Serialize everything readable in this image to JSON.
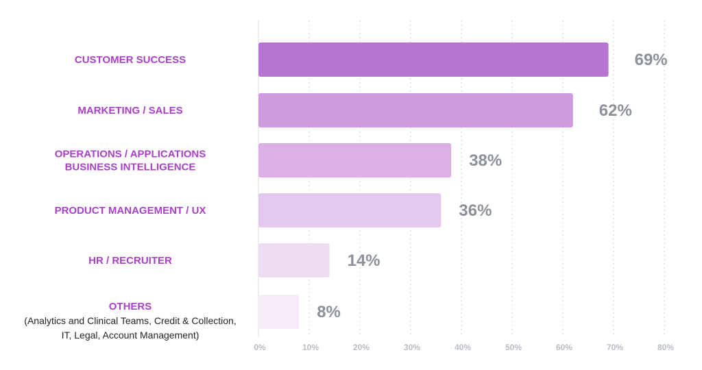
{
  "chart_data": {
    "type": "bar",
    "orientation": "horizontal",
    "categories": [
      [
        "CUSTOMER SUCCESS"
      ],
      [
        "MARKETING / SALES"
      ],
      [
        "OPERATIONS / APPLICATIONS",
        "BUSINESS INTELLIGENCE"
      ],
      [
        "PRODUCT MANAGEMENT / UX"
      ],
      [
        "HR / RECRUITER"
      ],
      [
        "OTHERS"
      ]
    ],
    "category_notes": [
      [],
      [],
      [],
      [],
      [],
      [
        "(Analytics and Clinical Teams, Credit & Collection,",
        "IT, Legal, Account Management)"
      ]
    ],
    "values": [
      69,
      62,
      38,
      36,
      14,
      8
    ],
    "value_labels": [
      "69%",
      "62%",
      "38%",
      "36%",
      "14%",
      "8%"
    ],
    "bar_colors": [
      "#b975d4",
      "#cf9adf",
      "#dbb1e5",
      "#e4c9ee",
      "#eedcf3",
      "#f5ecf8"
    ],
    "label_color": "#a83fc6",
    "xlim": [
      0,
      80
    ],
    "x_ticks": [
      0,
      10,
      20,
      30,
      40,
      50,
      60,
      70,
      80
    ],
    "x_tick_labels": [
      "0%",
      "10%",
      "20%",
      "30%",
      "40%",
      "50%",
      "60%",
      "70%",
      "80%"
    ],
    "grid": true,
    "title": "",
    "xlabel": "",
    "ylabel": ""
  }
}
